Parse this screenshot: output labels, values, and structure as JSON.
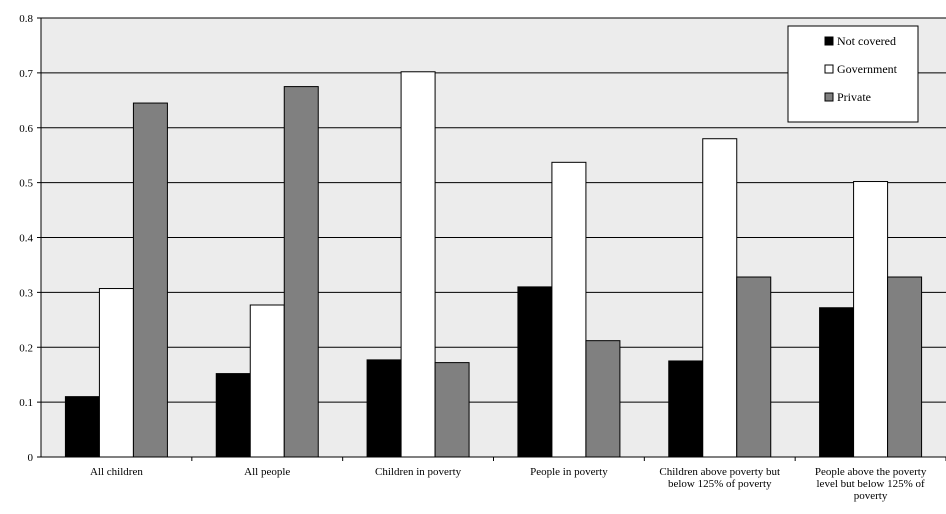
{
  "chart_data": {
    "type": "bar",
    "title": "",
    "xlabel": "",
    "ylabel": "",
    "ylim": [
      0,
      0.8
    ],
    "yticks": [
      "0",
      "0.1",
      "0.2",
      "0.3",
      "0.4",
      "0.5",
      "0.6",
      "0.7",
      "0.8"
    ],
    "grid": true,
    "plot_background": "#ececec",
    "legend_position": "top-right",
    "categories": [
      [
        "All children"
      ],
      [
        "All people"
      ],
      [
        "Children in poverty"
      ],
      [
        "People in poverty"
      ],
      [
        "Children above poverty but",
        "below 125% of poverty"
      ],
      [
        "People above the poverty",
        "level but below 125% of",
        "poverty"
      ]
    ],
    "series": [
      {
        "name": "Not covered",
        "color": "#000000",
        "values": [
          0.11,
          0.152,
          0.177,
          0.31,
          0.175,
          0.272
        ]
      },
      {
        "name": "Government",
        "color": "#ffffff",
        "values": [
          0.307,
          0.277,
          0.702,
          0.537,
          0.58,
          0.502
        ]
      },
      {
        "name": "Private",
        "color": "#808080",
        "values": [
          0.645,
          0.675,
          0.172,
          0.212,
          0.328,
          0.328
        ]
      }
    ]
  }
}
